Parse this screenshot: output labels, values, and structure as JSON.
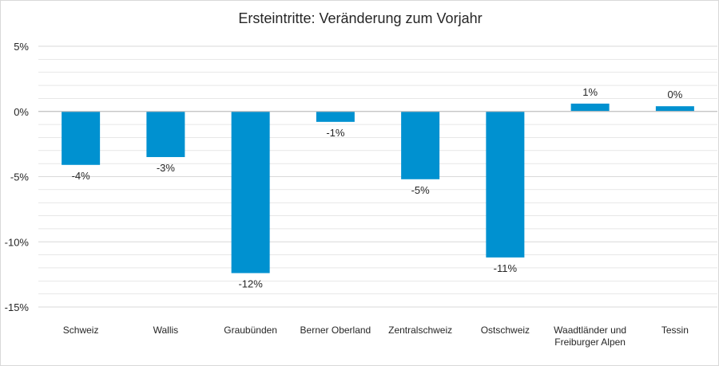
{
  "chart_data": {
    "type": "bar",
    "title": "Ersteintritte: Veränderung zum Vorjahr",
    "categories": [
      "Schweiz",
      "Wallis",
      "Graubünden",
      "Berner Oberland",
      "Zentralschweiz",
      "Ostschweiz",
      "Waadtländer und Freiburger Alpen",
      "Tessin"
    ],
    "category_lines": [
      [
        "Schweiz"
      ],
      [
        "Wallis"
      ],
      [
        "Graubünden"
      ],
      [
        "Berner Oberland"
      ],
      [
        "Zentralschweiz"
      ],
      [
        "Ostschweiz"
      ],
      [
        "Waadtländer und",
        "Freiburger Alpen"
      ],
      [
        "Tessin"
      ]
    ],
    "values": [
      -4.1,
      -3.5,
      -12.4,
      -0.8,
      -5.2,
      -11.2,
      0.6,
      0.4
    ],
    "data_labels": [
      "-4%",
      "-3%",
      "-12%",
      "-1%",
      "-5%",
      "-11%",
      "1%",
      "0%"
    ],
    "ylim": [
      -15,
      5
    ],
    "yticks": [
      5,
      0,
      -5,
      -10,
      -15
    ],
    "ytick_labels": [
      "5%",
      "0%",
      "-5%",
      "-10%",
      "-15%"
    ],
    "minor_grid_step": 1,
    "grid": true,
    "legend": "none",
    "bar_color": "#0091d0",
    "grid_color": "#d9d9d9",
    "axis_color": "#bfbfbf"
  }
}
